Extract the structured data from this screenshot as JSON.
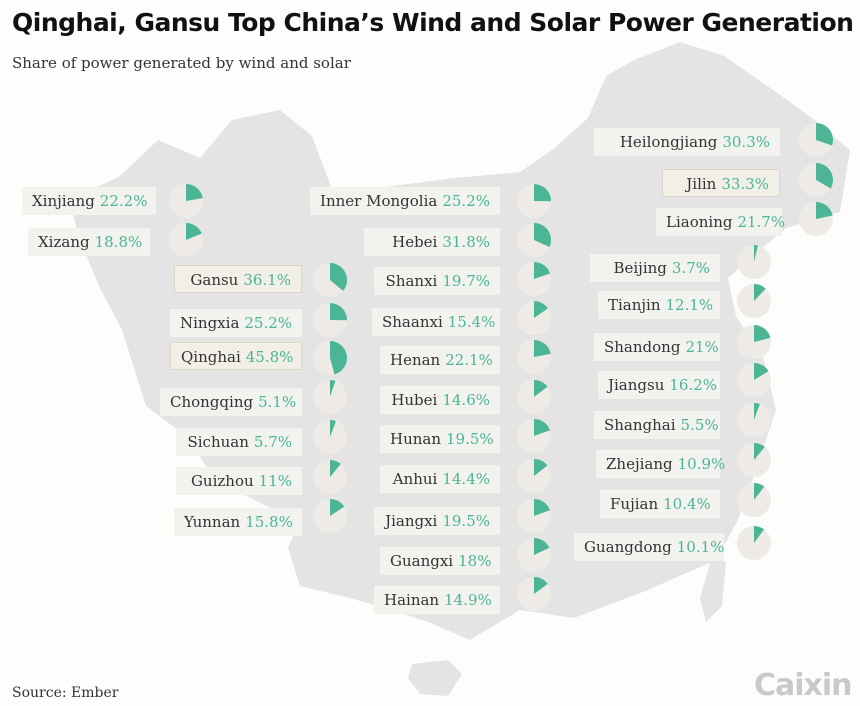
{
  "title": "Qinghai, Gansu Top China’s Wind and Solar Power Generation",
  "subtitle": "Share of power generated by wind and solar",
  "source": "Source: Ember",
  "brand": "Caixin",
  "colors": {
    "accent": "#4bb596",
    "pie_background": "#eeebe6",
    "map": "#e4e4e4"
  },
  "chart_data": {
    "type": "pie",
    "title": "Qinghai, Gansu Top China’s Wind and Solar Power Generation",
    "subtitle": "Share of power generated by wind and solar",
    "unit": "%",
    "regions": [
      {
        "name": "Xinjiang",
        "label": "22.2%",
        "value": 22.2
      },
      {
        "name": "Xizang",
        "label": "18.8%",
        "value": 18.8
      },
      {
        "name": "Gansu",
        "label": "36.1%",
        "value": 36.1,
        "highlight": true
      },
      {
        "name": "Ningxia",
        "label": "25.2%",
        "value": 25.2
      },
      {
        "name": "Qinghai",
        "label": "45.8%",
        "value": 45.8,
        "highlight": true
      },
      {
        "name": "Chongqing",
        "label": "5.1%",
        "value": 5.1
      },
      {
        "name": "Sichuan",
        "label": "5.7%",
        "value": 5.7
      },
      {
        "name": "Guizhou",
        "label": "11%",
        "value": 11
      },
      {
        "name": "Yunnan",
        "label": "15.8%",
        "value": 15.8
      },
      {
        "name": "Inner Mongolia",
        "label": "25.2%",
        "value": 25.2
      },
      {
        "name": "Hebei",
        "label": "31.8%",
        "value": 31.8
      },
      {
        "name": "Shanxi",
        "label": "19.7%",
        "value": 19.7
      },
      {
        "name": "Shaanxi",
        "label": "15.4%",
        "value": 15.4
      },
      {
        "name": "Henan",
        "label": "22.1%",
        "value": 22.1
      },
      {
        "name": "Hubei",
        "label": "14.6%",
        "value": 14.6
      },
      {
        "name": "Hunan",
        "label": "19.5%",
        "value": 19.5
      },
      {
        "name": "Anhui",
        "label": "14.4%",
        "value": 14.4
      },
      {
        "name": "Jiangxi",
        "label": "19.5%",
        "value": 19.5
      },
      {
        "name": "Guangxi",
        "label": "18%",
        "value": 18
      },
      {
        "name": "Hainan",
        "label": "14.9%",
        "value": 14.9
      },
      {
        "name": "Heilongjiang",
        "label": "30.3%",
        "value": 30.3
      },
      {
        "name": "Jilin",
        "label": "33.3%",
        "value": 33.3,
        "highlight": true
      },
      {
        "name": "Liaoning",
        "label": "21.7%",
        "value": 21.7
      },
      {
        "name": "Beijing",
        "label": "3.7%",
        "value": 3.7
      },
      {
        "name": "Tianjin",
        "label": "12.1%",
        "value": 12.1
      },
      {
        "name": "Shandong",
        "label": "21%",
        "value": 21
      },
      {
        "name": "Jiangsu",
        "label": "16.2%",
        "value": 16.2
      },
      {
        "name": "Shanghai",
        "label": "5.5%",
        "value": 5.5
      },
      {
        "name": "Zhejiang",
        "label": "10.9%",
        "value": 10.9
      },
      {
        "name": "Fujian",
        "label": "10.4%",
        "value": 10.4
      },
      {
        "name": "Guangdong",
        "label": "10.1%",
        "value": 10.1
      }
    ]
  }
}
